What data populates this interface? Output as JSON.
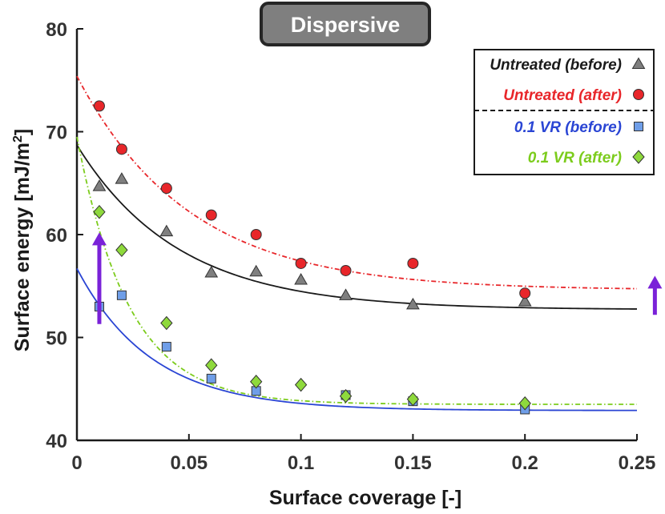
{
  "chart_data": {
    "type": "scatter",
    "title": "Dispersive",
    "xlabel": "Surface coverage [-]",
    "ylabel_main": "Surface energy [mJ/m",
    "ylabel_sup": "2",
    "ylabel_end": "]",
    "xlim": [
      0,
      0.25
    ],
    "ylim": [
      40,
      80
    ],
    "xticks": [
      0,
      0.05,
      0.1,
      0.15,
      0.2,
      0.25
    ],
    "xtick_labels": [
      "0",
      "0.05",
      "0.1",
      "0.15",
      "0.2",
      "0.25"
    ],
    "yticks": [
      40,
      50,
      60,
      70,
      80
    ],
    "ytick_labels": [
      "40",
      "50",
      "60",
      "70",
      "80"
    ],
    "legend_position": "top-right",
    "series": [
      {
        "name": "Untreated (before)",
        "marker": "triangle",
        "marker_color": "#7f7f7f",
        "text_color": "#1a1a1a",
        "line_color": "#1a1a1a",
        "line_style": "solid",
        "x": [
          0.01,
          0.02,
          0.04,
          0.06,
          0.08,
          0.1,
          0.12,
          0.15,
          0.2
        ],
        "y": [
          64.7,
          65.4,
          60.3,
          56.3,
          56.4,
          55.6,
          54.1,
          53.2,
          53.5
        ],
        "fit": {
          "a": 52.7,
          "b": 16.0,
          "k": 22
        }
      },
      {
        "name": "Untreated (after)",
        "marker": "circle",
        "marker_color": "#e8262a",
        "text_color": "#e8262a",
        "line_color": "#e8262a",
        "line_style": "dashdot",
        "x": [
          0.01,
          0.02,
          0.04,
          0.06,
          0.08,
          0.1,
          0.12,
          0.15,
          0.2
        ],
        "y": [
          72.5,
          68.3,
          64.5,
          61.9,
          60.0,
          57.2,
          56.5,
          57.2,
          54.3
        ],
        "fit": {
          "a": 54.6,
          "b": 20.8,
          "k": 20
        }
      },
      {
        "name": "0.1 VR (before)",
        "marker": "square",
        "marker_color": "#6f9ee8",
        "text_color": "#2a45d4",
        "line_color": "#2a45d4",
        "line_style": "solid",
        "x": [
          0.01,
          0.02,
          0.04,
          0.06,
          0.08,
          0.12,
          0.15,
          0.2
        ],
        "y": [
          53.0,
          54.1,
          49.1,
          46.0,
          44.8,
          44.4,
          43.8,
          43.0
        ],
        "fit": {
          "a": 42.9,
          "b": 13.8,
          "k": 30
        }
      },
      {
        "name": "0.1 VR (after)",
        "marker": "diamond",
        "marker_color": "#8ed93c",
        "text_color": "#7ccc1c",
        "line_color": "#7ccc1c",
        "line_style": "dashdot",
        "x": [
          0.01,
          0.02,
          0.04,
          0.06,
          0.08,
          0.1,
          0.12,
          0.15,
          0.2
        ],
        "y": [
          62.2,
          58.5,
          51.4,
          47.3,
          45.7,
          45.4,
          44.3,
          44.0,
          43.6
        ],
        "fit": {
          "a": 43.5,
          "b": 26.0,
          "k": 43
        }
      }
    ],
    "annotations": [
      {
        "kind": "up-arrow",
        "color": "#7a22d8",
        "x": 0.01,
        "y_from": 51.3,
        "y_to": 60.2
      },
      {
        "kind": "up-arrow",
        "color": "#7a22d8",
        "x": 0.258,
        "y_from": 52.2,
        "y_to": 56.0
      }
    ]
  }
}
